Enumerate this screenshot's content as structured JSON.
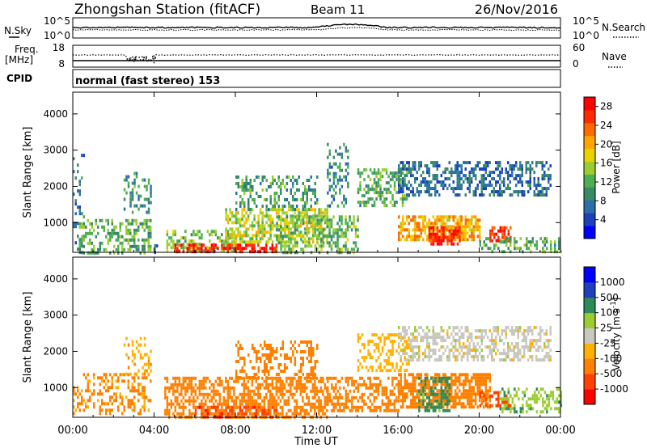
{
  "header": {
    "station_title": "Zhongshan Station (fitACF)",
    "beam": "Beam 11",
    "date": "26/Nov/2016"
  },
  "strips": {
    "nsky_label": "N.Sky",
    "nsky_top": "10^5",
    "nsky_bottom": "10^0",
    "nsearch_label": "N.Search",
    "nsearch_top": "10^5",
    "nsearch_bottom": "10^0",
    "freq_label": "Freq.",
    "freq_unit": "[MHz]",
    "freq_top": "18",
    "freq_bottom": "8",
    "nave_label": "Nave",
    "nave_top": "60",
    "nave_bottom": "0",
    "cpid_label": "CPID",
    "cpid_text": "normal (fast stereo) 153"
  },
  "chart_data": [
    {
      "type": "heatmap",
      "panel": "power",
      "ylabel": "Slant Range [km]",
      "xlabel": "Time UT",
      "xlim_hours": [
        0,
        24
      ],
      "ylim": [
        180,
        4600
      ],
      "x_ticks": [
        "00:00",
        "04:00",
        "08:00",
        "12:00",
        "16:00",
        "20:00",
        "00:00"
      ],
      "y_ticks": [
        1000,
        2000,
        3000,
        4000
      ],
      "colorbar": {
        "label": "Power [dB]",
        "ticks": [
          4,
          8,
          12,
          16,
          20,
          24,
          28
        ],
        "range": [
          0,
          30
        ],
        "colors": [
          "#0000ff",
          "#1c3fbe",
          "#2a6fa8",
          "#3a8a6a",
          "#4caf50",
          "#9acd32",
          "#e8d200",
          "#ffa500",
          "#ff6a00",
          "#ff2a00",
          "#ff0000"
        ]
      },
      "regions": [
        {
          "t": [
            0.0,
            0.5
          ],
          "r": [
            200,
            2900
          ],
          "value": 8,
          "density": 0.25
        },
        {
          "t": [
            0.3,
            3.8
          ],
          "r": [
            200,
            1100
          ],
          "value": 12,
          "density": 0.45
        },
        {
          "t": [
            2.5,
            3.8
          ],
          "r": [
            1300,
            2400
          ],
          "value": 10,
          "density": 0.3
        },
        {
          "t": [
            3.8,
            4.1
          ],
          "r": [
            200,
            400
          ],
          "value": 8,
          "density": 0.4
        },
        {
          "t": [
            4.5,
            8.0
          ],
          "r": [
            200,
            800
          ],
          "value": 14,
          "density": 0.45
        },
        {
          "t": [
            5.0,
            10.0
          ],
          "r": [
            200,
            420
          ],
          "value": 27,
          "density": 0.55
        },
        {
          "t": [
            7.5,
            12.5
          ],
          "r": [
            500,
            1400
          ],
          "value": 16,
          "density": 0.6
        },
        {
          "t": [
            8.0,
            12.0
          ],
          "r": [
            1400,
            2300
          ],
          "value": 11,
          "density": 0.4
        },
        {
          "t": [
            10.0,
            14.0
          ],
          "r": [
            200,
            1200
          ],
          "value": 13,
          "density": 0.45
        },
        {
          "t": [
            12.5,
            13.5
          ],
          "r": [
            1500,
            3200
          ],
          "value": 9,
          "density": 0.3
        },
        {
          "t": [
            14.0,
            16.5
          ],
          "r": [
            1500,
            2500
          ],
          "value": 12,
          "density": 0.45
        },
        {
          "t": [
            16.0,
            20.0
          ],
          "r": [
            500,
            1200
          ],
          "value": 20,
          "density": 0.7
        },
        {
          "t": [
            17.5,
            19.0
          ],
          "r": [
            450,
            900
          ],
          "value": 27,
          "density": 0.7
        },
        {
          "t": [
            20.5,
            21.5
          ],
          "r": [
            500,
            900
          ],
          "value": 26,
          "density": 0.6
        },
        {
          "t": [
            16.0,
            23.5
          ],
          "r": [
            1800,
            2700
          ],
          "value": 7,
          "density": 0.5
        },
        {
          "t": [
            20.0,
            24.0
          ],
          "r": [
            200,
            600
          ],
          "value": 12,
          "density": 0.4
        }
      ]
    },
    {
      "type": "heatmap",
      "panel": "velocity",
      "ylabel": "Slant Range [km]",
      "xlabel": "Time UT",
      "xlim_hours": [
        0,
        24
      ],
      "ylim": [
        180,
        4600
      ],
      "x_ticks": [
        "00:00",
        "04:00",
        "08:00",
        "12:00",
        "16:00",
        "20:00",
        "00:00"
      ],
      "y_ticks": [
        1000,
        2000,
        3000,
        4000
      ],
      "colorbar": {
        "label": "Velocity [m s^-1]",
        "ticks": [
          1000,
          500,
          100,
          25,
          -25,
          -100,
          -500,
          -1000
        ],
        "colors": [
          "#ff0000",
          "#ff4000",
          "#ff8000",
          "#ffb000",
          "#c8c8c0",
          "#9acd32",
          "#2e8b57",
          "#1f3fbf",
          "#0000ff"
        ]
      },
      "regions": [
        {
          "t": [
            0.0,
            3.8
          ],
          "r": [
            300,
            1400
          ],
          "value": -120,
          "density": 0.35
        },
        {
          "t": [
            2.5,
            3.8
          ],
          "r": [
            1400,
            2400
          ],
          "value": -80,
          "density": 0.3
        },
        {
          "t": [
            4.5,
            12.5
          ],
          "r": [
            200,
            1300
          ],
          "value": -350,
          "density": 0.6
        },
        {
          "t": [
            6.0,
            10.0
          ],
          "r": [
            200,
            500
          ],
          "value": -800,
          "density": 0.45
        },
        {
          "t": [
            8.0,
            12.0
          ],
          "r": [
            1300,
            2300
          ],
          "value": -200,
          "density": 0.4
        },
        {
          "t": [
            12.5,
            16.0
          ],
          "r": [
            400,
            1300
          ],
          "value": -180,
          "density": 0.55
        },
        {
          "t": [
            16.0,
            20.5
          ],
          "r": [
            500,
            1400
          ],
          "value": -180,
          "density": 0.7
        },
        {
          "t": [
            17.0,
            18.5
          ],
          "r": [
            400,
            1300
          ],
          "value": 150,
          "density": 0.5
        },
        {
          "t": [
            20.0,
            21.5
          ],
          "r": [
            500,
            900
          ],
          "value": -700,
          "density": 0.5
        },
        {
          "t": [
            16.0,
            23.5
          ],
          "r": [
            1800,
            2700
          ],
          "value": 0,
          "density": 0.5
        },
        {
          "t": [
            14.0,
            16.5
          ],
          "r": [
            1500,
            2500
          ],
          "value": -60,
          "density": 0.4
        },
        {
          "t": [
            21.0,
            24.0
          ],
          "r": [
            300,
            1000
          ],
          "value": 80,
          "density": 0.4
        }
      ]
    }
  ]
}
